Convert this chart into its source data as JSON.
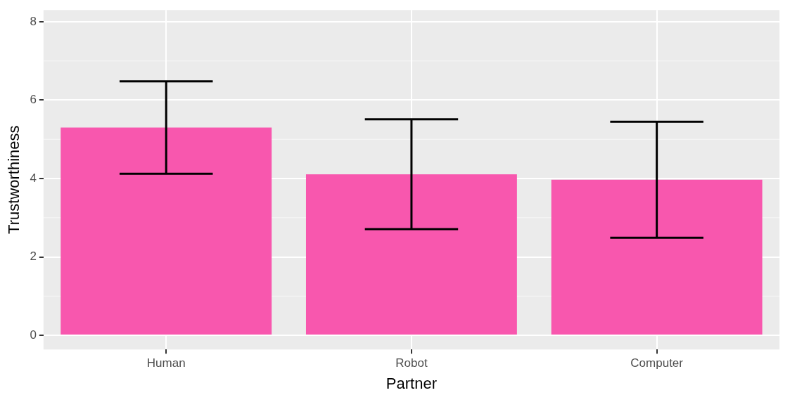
{
  "chart_data": {
    "type": "bar",
    "xlabel": "Partner",
    "ylabel": "Trustworthiness",
    "categories": [
      "Human",
      "Robot",
      "Computer"
    ],
    "values": [
      5.3,
      4.11,
      3.97
    ],
    "errors": [
      1.18,
      1.4,
      1.48
    ],
    "color": "#f857ae",
    "ylim": [
      -0.36,
      8.3
    ],
    "yticks": [
      0,
      2,
      4,
      6,
      8
    ],
    "grid": true,
    "legend": false
  }
}
